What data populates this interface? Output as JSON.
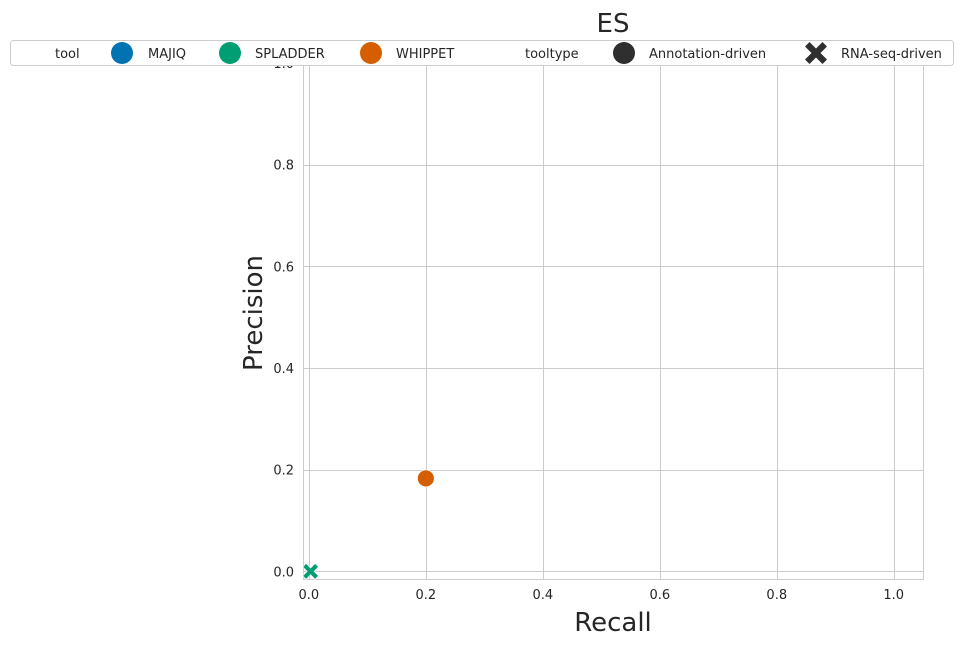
{
  "chart_data": {
    "type": "scatter",
    "title": "ES",
    "xlabel": "Recall",
    "ylabel": "Precision",
    "xlim": [
      -0.01,
      1.05
    ],
    "ylim": [
      -0.015,
      1.0
    ],
    "xticks": [
      0.0,
      0.2,
      0.4,
      0.6,
      0.8,
      1.0
    ],
    "yticks": [
      0.0,
      0.2,
      0.4,
      0.6,
      0.8,
      1.0
    ],
    "xtick_labels": [
      "0.0",
      "0.2",
      "0.4",
      "0.6",
      "0.8",
      "1.0"
    ],
    "ytick_labels": [
      "0.0",
      "0.2",
      "0.4",
      "0.6",
      "0.8",
      "1.0"
    ],
    "grid": true,
    "legend": {
      "placement": "top",
      "groups": [
        {
          "title": "tool",
          "entries": [
            {
              "label": "MAJIQ",
              "color": "#0173b2",
              "marker": "circle"
            },
            {
              "label": "SPLADDER",
              "color": "#029e73",
              "marker": "circle"
            },
            {
              "label": "WHIPPET",
              "color": "#d55e00",
              "marker": "circle"
            }
          ]
        },
        {
          "title": "tooltype",
          "entries": [
            {
              "label": "Annotation-driven",
              "color": "#2f2f2f",
              "marker": "circle"
            },
            {
              "label": "RNA-seq-driven",
              "color": "#2f2f2f",
              "marker": "x"
            }
          ]
        }
      ]
    },
    "points": [
      {
        "tool": "SPLADDER",
        "tooltype": "RNA-seq-driven",
        "x": 0.003,
        "y": 0.0,
        "color": "#029e73",
        "marker": "x"
      },
      {
        "tool": "WHIPPET",
        "tooltype": "Annotation-driven",
        "x": 0.2,
        "y": 0.183,
        "color": "#d55e00",
        "marker": "circle"
      }
    ]
  }
}
